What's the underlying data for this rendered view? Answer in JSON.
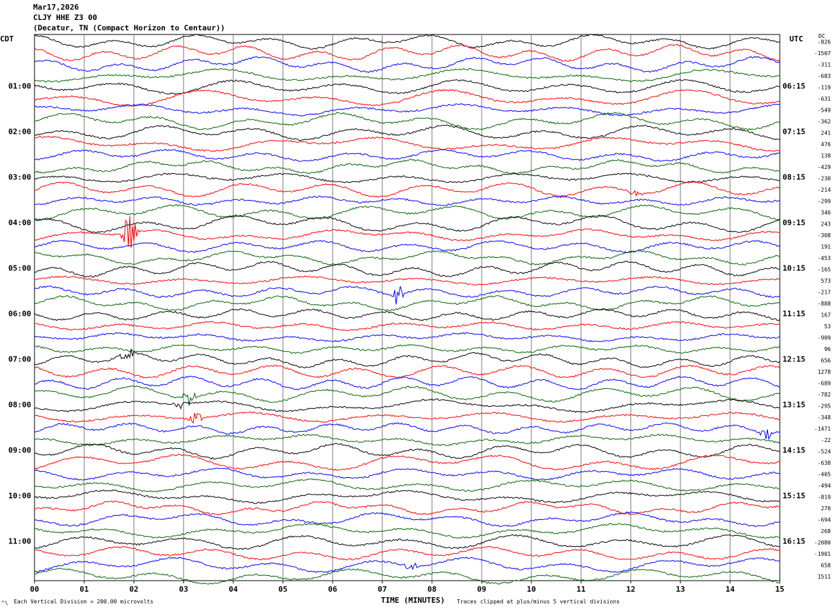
{
  "header": {
    "date": "Mar17,2026",
    "station": "CLJY HHE Z3 00",
    "location": "(Decatur, TN (Compact Horizon to Centaur))"
  },
  "left_tz": "CDT",
  "right_tz": "UTC",
  "dc_label": "DC",
  "footer": {
    "scale": "Each Vertical Division =  200.00 microvolts",
    "clip": "Traces clipped at plus/minus 5 vertical divisions",
    "corner_mark": "^\\"
  },
  "chart_data": {
    "type": "line",
    "title": "",
    "xlabel": "TIME (MINUTES)",
    "xlim": [
      0,
      15
    ],
    "x_ticks": [
      "00",
      "01",
      "02",
      "03",
      "04",
      "05",
      "06",
      "07",
      "08",
      "09",
      "10",
      "11",
      "12",
      "13",
      "14",
      "15"
    ],
    "left_time_labels": [
      "01:00",
      "02:00",
      "03:00",
      "04:00",
      "05:00",
      "06:00",
      "07:00",
      "08:00",
      "09:00",
      "10:00",
      "11:00"
    ],
    "right_time_labels": [
      "06:15",
      "07:15",
      "08:15",
      "09:15",
      "10:15",
      "11:15",
      "12:15",
      "13:15",
      "14:15",
      "15:15",
      "16:15"
    ],
    "label_rows": [
      4,
      8,
      12,
      16,
      20,
      24,
      28,
      32,
      36,
      40,
      44
    ],
    "trace_colors": [
      "#000000",
      "#ff0000",
      "#0000ff",
      "#006400"
    ],
    "dc_offsets": [
      "-826",
      "-1507",
      "-311",
      "-683",
      "-119",
      "-631",
      "-549",
      "-362",
      "241",
      "476",
      "138",
      "-429",
      "-230",
      "-214",
      "-299",
      "346",
      "243",
      "-308",
      "191",
      "-453",
      "-165",
      "573",
      "-217",
      "-888",
      "167",
      "53",
      "-909",
      "96",
      "656",
      "1278",
      "-689",
      "-782",
      "-295",
      "-348",
      "-1471",
      "-22",
      "-524",
      "-638",
      "-405",
      "-494",
      "-819",
      "270",
      "-694",
      "268",
      "-2080",
      "-1901",
      "658",
      "1511"
    ],
    "events": [
      {
        "row": 17,
        "minute": 1.9,
        "amplitude": 30
      },
      {
        "row": 28,
        "minute": 1.85,
        "amplitude": 14
      },
      {
        "row": 22,
        "minute": 7.3,
        "amplitude": 18
      },
      {
        "row": 31,
        "minute": 3.1,
        "amplitude": 16
      },
      {
        "row": 32,
        "minute": 2.95,
        "amplitude": 10
      },
      {
        "row": 33,
        "minute": 3.25,
        "amplitude": 10
      },
      {
        "row": 34,
        "minute": 14.75,
        "amplitude": 9
      },
      {
        "row": 13,
        "minute": 12.1,
        "amplitude": 8
      },
      {
        "row": 46,
        "minute": 7.6,
        "amplitude": 10
      }
    ]
  }
}
